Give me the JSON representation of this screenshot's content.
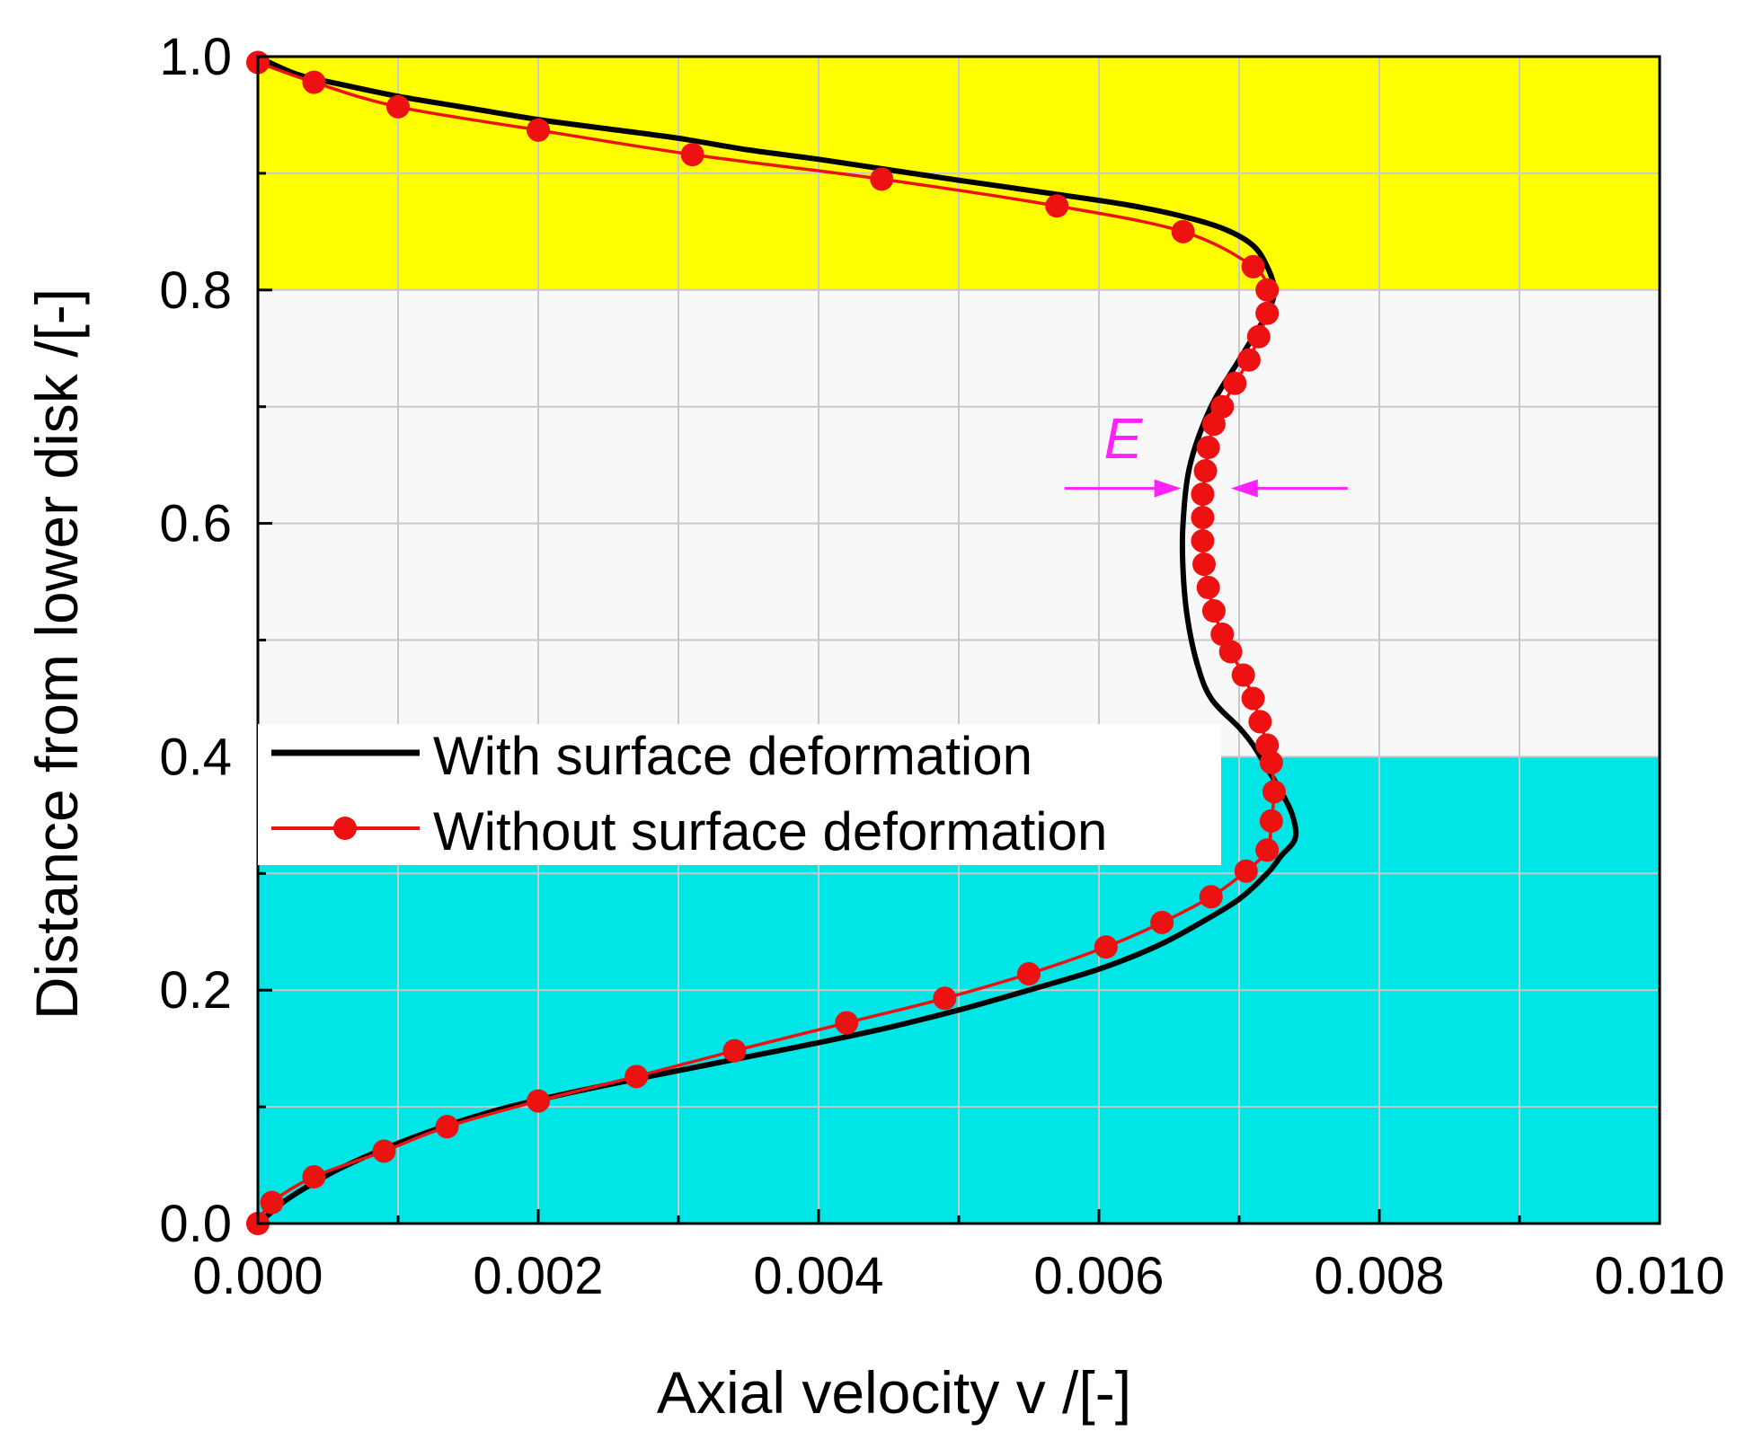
{
  "chart_data": {
    "type": "line",
    "xlabel": "Axial velocity v /[-]",
    "ylabel": "Distance from lower disk /[-]",
    "xlim": [
      0,
      0.01
    ],
    "ylim": [
      0,
      1.0
    ],
    "grid": true,
    "x_ticks": [
      "0.000",
      "0.002",
      "0.004",
      "0.006",
      "0.008",
      "0.010"
    ],
    "y_ticks": [
      "0.0",
      "0.2",
      "0.4",
      "0.6",
      "0.8",
      "1.0"
    ],
    "colors": {
      "upper_band": "#ffff00",
      "lower_band": "#00e5e5",
      "with_series": "#000000",
      "without_series": "#ee1111",
      "annotation": "#ff22ff",
      "grid": "#c8c8c8"
    },
    "regions": [
      {
        "name": "upper-band",
        "y_range": [
          0.8,
          1.0
        ],
        "color": "#ffff00"
      },
      {
        "name": "lower-band",
        "y_range": [
          0.0,
          0.4
        ],
        "color": "#00e5e5"
      }
    ],
    "legend": {
      "position": "center-left",
      "entries": [
        "With surface deformation",
        "Without surface deformation"
      ]
    },
    "annotation": {
      "label": "E",
      "y": 0.63,
      "x_left": 0.0066,
      "x_right": 0.0068
    },
    "series": [
      {
        "name": "With surface deformation",
        "style": "line",
        "points": [
          [
            0.0,
            0.0
          ],
          [
            0.0001,
            0.01
          ],
          [
            0.0002,
            0.02
          ],
          [
            0.0004,
            0.035
          ],
          [
            0.0006,
            0.048
          ],
          [
            0.0009,
            0.064
          ],
          [
            0.0013,
            0.082
          ],
          [
            0.0017,
            0.097
          ],
          [
            0.002,
            0.106
          ],
          [
            0.0025,
            0.119
          ],
          [
            0.003,
            0.131
          ],
          [
            0.0035,
            0.143
          ],
          [
            0.004,
            0.155
          ],
          [
            0.0045,
            0.168
          ],
          [
            0.005,
            0.183
          ],
          [
            0.0055,
            0.2
          ],
          [
            0.006,
            0.218
          ],
          [
            0.0064,
            0.237
          ],
          [
            0.0067,
            0.256
          ],
          [
            0.007,
            0.278
          ],
          [
            0.0072,
            0.3
          ],
          [
            0.0073,
            0.315
          ],
          [
            0.0074,
            0.33
          ],
          [
            0.00738,
            0.35
          ],
          [
            0.0073,
            0.37
          ],
          [
            0.0072,
            0.39
          ],
          [
            0.0071,
            0.41
          ],
          [
            0.007,
            0.425
          ],
          [
            0.0068,
            0.45
          ],
          [
            0.0067,
            0.48
          ],
          [
            0.00663,
            0.52
          ],
          [
            0.0066,
            0.56
          ],
          [
            0.0066,
            0.6
          ],
          [
            0.00665,
            0.65
          ],
          [
            0.0068,
            0.7
          ],
          [
            0.007,
            0.74
          ],
          [
            0.0072,
            0.78
          ],
          [
            0.00725,
            0.8
          ],
          [
            0.0072,
            0.82
          ],
          [
            0.0071,
            0.838
          ],
          [
            0.0069,
            0.852
          ],
          [
            0.0066,
            0.863
          ],
          [
            0.0062,
            0.873
          ],
          [
            0.0057,
            0.882
          ],
          [
            0.005,
            0.894
          ],
          [
            0.0045,
            0.903
          ],
          [
            0.004,
            0.912
          ],
          [
            0.0035,
            0.92
          ],
          [
            0.003,
            0.93
          ],
          [
            0.0025,
            0.938
          ],
          [
            0.002,
            0.946
          ],
          [
            0.0015,
            0.956
          ],
          [
            0.001,
            0.966
          ],
          [
            0.0006,
            0.976
          ],
          [
            0.0003,
            0.984
          ],
          [
            0.0001,
            0.994
          ],
          [
            0.0,
            1.0
          ]
        ]
      },
      {
        "name": "Without surface deformation",
        "style": "line-marker",
        "points": [
          [
            0.0,
            0.0
          ],
          [
            0.0001,
            0.018
          ],
          [
            0.0004,
            0.04
          ],
          [
            0.0009,
            0.062
          ],
          [
            0.00135,
            0.083
          ],
          [
            0.002,
            0.105
          ],
          [
            0.0027,
            0.126
          ],
          [
            0.0034,
            0.148
          ],
          [
            0.0042,
            0.172
          ],
          [
            0.0049,
            0.193
          ],
          [
            0.0055,
            0.214
          ],
          [
            0.00605,
            0.237
          ],
          [
            0.00645,
            0.258
          ],
          [
            0.0068,
            0.28
          ],
          [
            0.00705,
            0.302
          ],
          [
            0.0072,
            0.32
          ],
          [
            0.00723,
            0.345
          ],
          [
            0.00725,
            0.37
          ],
          [
            0.00723,
            0.395
          ],
          [
            0.0072,
            0.41
          ],
          [
            0.00715,
            0.43
          ],
          [
            0.0071,
            0.45
          ],
          [
            0.00703,
            0.47
          ],
          [
            0.00694,
            0.49
          ],
          [
            0.00688,
            0.505
          ],
          [
            0.00682,
            0.525
          ],
          [
            0.00678,
            0.545
          ],
          [
            0.00675,
            0.565
          ],
          [
            0.00674,
            0.585
          ],
          [
            0.00674,
            0.605
          ],
          [
            0.00674,
            0.625
          ],
          [
            0.00676,
            0.645
          ],
          [
            0.00678,
            0.665
          ],
          [
            0.00682,
            0.685
          ],
          [
            0.00688,
            0.7
          ],
          [
            0.00697,
            0.72
          ],
          [
            0.00707,
            0.74
          ],
          [
            0.00714,
            0.76
          ],
          [
            0.0072,
            0.78
          ],
          [
            0.0072,
            0.8
          ],
          [
            0.0071,
            0.82
          ],
          [
            0.0066,
            0.85
          ],
          [
            0.0057,
            0.872
          ],
          [
            0.00445,
            0.895
          ],
          [
            0.0031,
            0.916
          ],
          [
            0.002,
            0.937
          ],
          [
            0.001,
            0.957
          ],
          [
            0.0004,
            0.978
          ],
          [
            0.0,
            0.995
          ]
        ]
      }
    ]
  }
}
